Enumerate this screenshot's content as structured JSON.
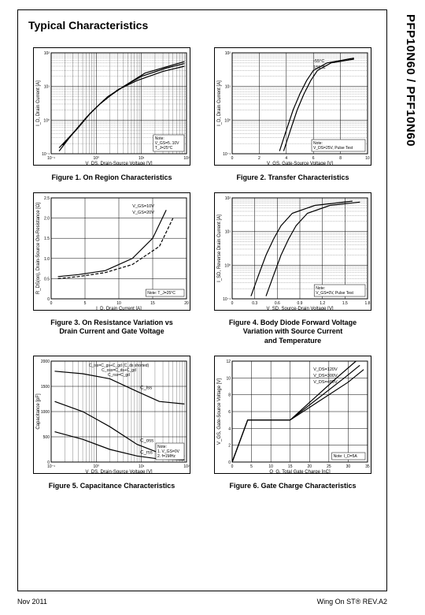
{
  "part_number": "PFP10N60 / PFF10N60",
  "section_title": "Typical Characteristics",
  "footer": {
    "left": "Nov 2011",
    "right": "Wing On ST® REV.A2"
  },
  "figures": [
    {
      "caption": "Figure 1. On Region Characteristics",
      "type": "log-log",
      "xlabel": "V_DS, Drain-Source Voltage [V]",
      "ylabel": "I_D, Drain Current [A]",
      "xlim": [
        0.1,
        100
      ],
      "ylim": [
        0.1,
        100
      ],
      "xticks": [
        "10⁻¹",
        "10⁰",
        "10¹",
        "10²"
      ],
      "yticks": [
        "10⁻¹",
        "10⁰",
        "10¹",
        "10²"
      ],
      "grid_color": "#000000",
      "curves": [
        {
          "color": "#000",
          "pts": [
            [
              0.15,
              0.12
            ],
            [
              0.3,
              0.4
            ],
            [
              0.6,
              1.2
            ],
            [
              1.2,
              3
            ],
            [
              3,
              8
            ],
            [
              8,
              15
            ],
            [
              30,
              28
            ],
            [
              90,
              40
            ]
          ]
        },
        {
          "color": "#000",
          "pts": [
            [
              0.15,
              0.15
            ],
            [
              0.35,
              0.5
            ],
            [
              0.7,
              1.5
            ],
            [
              1.5,
              4
            ],
            [
              4,
              10
            ],
            [
              10,
              20
            ],
            [
              35,
              35
            ],
            [
              90,
              48
            ]
          ]
        },
        {
          "color": "#000",
          "pts": [
            [
              0.18,
              0.18
            ],
            [
              0.4,
              0.6
            ],
            [
              0.8,
              1.8
            ],
            [
              1.8,
              5
            ],
            [
              5,
              12
            ],
            [
              12,
              25
            ],
            [
              40,
              40
            ],
            [
              90,
              55
            ]
          ]
        }
      ],
      "note": "Note:\nV_GS=5..10V\nT_J=25°C"
    },
    {
      "caption": "Figure 2. Transfer Characteristics",
      "type": "lin-log",
      "xlabel": "V_GS, Gate-Source Voltage [V]",
      "ylabel": "I_D, Drain Current [A]",
      "xlim": [
        0,
        10
      ],
      "ylim": [
        0.1,
        100
      ],
      "xticks": [
        "0",
        "2",
        "4",
        "6",
        "8",
        "10"
      ],
      "yticks": [
        "10⁻¹",
        "10⁰",
        "10¹",
        "10²"
      ],
      "grid_color": "#000000",
      "curves": [
        {
          "color": "#000",
          "pts": [
            [
              3.5,
              0.12
            ],
            [
              4,
              0.5
            ],
            [
              4.5,
              2
            ],
            [
              5,
              6
            ],
            [
              5.5,
              15
            ],
            [
              6,
              30
            ],
            [
              7,
              50
            ],
            [
              9,
              70
            ]
          ]
        },
        {
          "color": "#000",
          "pts": [
            [
              3.8,
              0.12
            ],
            [
              4.3,
              0.5
            ],
            [
              4.8,
              2
            ],
            [
              5.3,
              6
            ],
            [
              5.8,
              15
            ],
            [
              6.3,
              30
            ],
            [
              7.3,
              50
            ],
            [
              9,
              65
            ]
          ]
        }
      ],
      "note": "Note:\nV_DS=25V, Pulse Test",
      "annotations": [
        "-55°C",
        "150°C"
      ]
    },
    {
      "caption": "Figure 3. On Resistance Variation vs\nDrain Current and Gate Voltage",
      "type": "lin-lin",
      "xlabel": "I_D, Drain Current [A]",
      "ylabel": "R_DS(on), Drain-Source On-Resistance [Ω]",
      "xlim": [
        0,
        20
      ],
      "ylim": [
        0,
        2.5
      ],
      "xticks": [
        "0",
        "5",
        "10",
        "15",
        "20"
      ],
      "yticks": [
        "0",
        "0.5",
        "1.0",
        "1.5",
        "2.0",
        "2.5"
      ],
      "grid_color": "#000000",
      "curves": [
        {
          "color": "#000",
          "pts": [
            [
              1,
              0.55
            ],
            [
              4,
              0.6
            ],
            [
              8,
              0.7
            ],
            [
              12,
              1.0
            ],
            [
              15,
              1.5
            ],
            [
              17,
              2.2
            ]
          ]
        },
        {
          "color": "#000",
          "dash": "4,2",
          "pts": [
            [
              1,
              0.5
            ],
            [
              4,
              0.55
            ],
            [
              8,
              0.65
            ],
            [
              12,
              0.85
            ],
            [
              16,
              1.3
            ],
            [
              18,
              2.0
            ]
          ]
        }
      ],
      "note": "Note: T_J=25°C",
      "annotations": [
        "V_GS=10V",
        "V_GS=20V"
      ]
    },
    {
      "caption": "Figure 4. Body Diode Forward Voltage\nVariation with Source Current\nand Temperature",
      "type": "lin-log",
      "xlabel": "V_SD, Source-Drain Voltage [V]",
      "ylabel": "I_SD, Reverse Drain Current [A]",
      "xlim": [
        0,
        1.8
      ],
      "ylim": [
        0.1,
        100
      ],
      "xticks": [
        "0",
        "0.3",
        "0.6",
        "0.9",
        "1.2",
        "1.5",
        "1.8"
      ],
      "yticks": [
        "10⁻¹",
        "10⁰",
        "10¹",
        "10²"
      ],
      "grid_color": "#000000",
      "curves": [
        {
          "color": "#000",
          "pts": [
            [
              0.25,
              0.12
            ],
            [
              0.35,
              0.5
            ],
            [
              0.45,
              2
            ],
            [
              0.55,
              6
            ],
            [
              0.65,
              15
            ],
            [
              0.8,
              35
            ],
            [
              1.1,
              60
            ],
            [
              1.6,
              80
            ]
          ]
        },
        {
          "color": "#000",
          "pts": [
            [
              0.45,
              0.12
            ],
            [
              0.55,
              0.5
            ],
            [
              0.65,
              2
            ],
            [
              0.75,
              6
            ],
            [
              0.85,
              15
            ],
            [
              1.0,
              35
            ],
            [
              1.3,
              60
            ],
            [
              1.7,
              75
            ]
          ]
        }
      ],
      "note": "Note:\nV_GS=0V, Pulse Test"
    },
    {
      "caption": "Figure 5. Capacitance Characteristics",
      "type": "log-lin",
      "xlabel": "V_DS, Drain-Source Voltage [V]",
      "ylabel": "Capacitance [pF]",
      "xlim": [
        0.1,
        100
      ],
      "ylim": [
        0,
        2000
      ],
      "xticks": [
        "10⁻¹",
        "10⁰",
        "10¹",
        "10²"
      ],
      "yticks": [
        "0",
        "500",
        "1000",
        "1500",
        "2000"
      ],
      "grid_color": "#000000",
      "curves": [
        {
          "color": "#000",
          "label": "C_iss",
          "pts": [
            [
              0.12,
              1800
            ],
            [
              0.5,
              1750
            ],
            [
              2,
              1650
            ],
            [
              8,
              1400
            ],
            [
              25,
              1200
            ],
            [
              90,
              1150
            ]
          ]
        },
        {
          "color": "#000",
          "label": "C_oss",
          "pts": [
            [
              0.12,
              1200
            ],
            [
              0.5,
              1000
            ],
            [
              2,
              700
            ],
            [
              8,
              350
            ],
            [
              25,
              180
            ],
            [
              90,
              120
            ]
          ]
        },
        {
          "color": "#000",
          "label": "C_rss",
          "pts": [
            [
              0.12,
              600
            ],
            [
              0.5,
              450
            ],
            [
              2,
              250
            ],
            [
              8,
              120
            ],
            [
              25,
              60
            ],
            [
              90,
              40
            ]
          ]
        }
      ],
      "note": "Note:\n1. V_GS=0V\n2. f=1MHz",
      "header": "C_iss=C_gs+C_gd (C_ds shorted)\nC_oss=C_ds+C_gd\nC_rss=C_gd"
    },
    {
      "caption": "Figure 6. Gate Charge Characteristics",
      "type": "lin-lin",
      "xlabel": "Q_G, Total Gate Charge [nC]",
      "ylabel": "V_GS, Gate-Source Voltage [V]",
      "xlim": [
        0,
        35
      ],
      "ylim": [
        0,
        12
      ],
      "xticks": [
        "0",
        "5",
        "10",
        "15",
        "20",
        "25",
        "30",
        "35"
      ],
      "yticks": [
        "0",
        "2",
        "4",
        "6",
        "8",
        "10",
        "12"
      ],
      "grid_color": "#000000",
      "curves": [
        {
          "color": "#000",
          "pts": [
            [
              0,
              0
            ],
            [
              4,
              5
            ],
            [
              15,
              5
            ],
            [
              27,
              10
            ],
            [
              32,
              12
            ]
          ]
        },
        {
          "color": "#000",
          "pts": [
            [
              0,
              0
            ],
            [
              4,
              5
            ],
            [
              15,
              5
            ],
            [
              29,
              10
            ],
            [
              33,
              11.5
            ]
          ]
        },
        {
          "color": "#000",
          "pts": [
            [
              0,
              0
            ],
            [
              4,
              5
            ],
            [
              15,
              5
            ],
            [
              30,
              9.5
            ],
            [
              34,
              11
            ]
          ]
        }
      ],
      "note": "Note: I_D=5A",
      "annotations": [
        "V_DS=120V",
        "V_DS=300V",
        "V_DS=480V"
      ]
    }
  ],
  "style": {
    "chart_border": "#000000",
    "background": "#ffffff",
    "caption_fontsize": 9,
    "axislabel_fontsize": 6
  }
}
